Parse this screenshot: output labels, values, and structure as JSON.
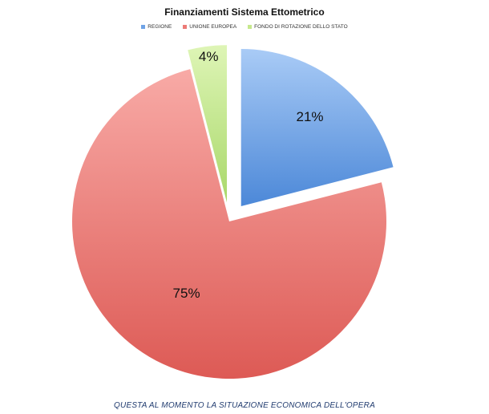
{
  "chart_data": {
    "type": "pie",
    "title": "Finanziamenti Sistema Ettometrico",
    "legend_position": "top",
    "slices": [
      {
        "name": "REGIONE",
        "value": 21,
        "label": "21%",
        "color": "#6fa3e6",
        "color_light": "#a9cbf6",
        "color_dark": "#4c88d8",
        "exploded": true
      },
      {
        "name": "UNIONE EUROPEA",
        "value": 75,
        "label": "75%",
        "color": "#ec7b77",
        "color_light": "#f8aaa6",
        "color_dark": "#dd5a55",
        "exploded": false
      },
      {
        "name": "FONDO DI ROTAZIONE DELLO STATO",
        "value": 4,
        "label": "4%",
        "color": "#c6e88c",
        "color_light": "#def5b6",
        "color_dark": "#a9d86a",
        "exploded": true
      }
    ]
  },
  "caption": "QUESTA AL MOMENTO LA SITUAZIONE ECONOMICA DELL'OPERA"
}
